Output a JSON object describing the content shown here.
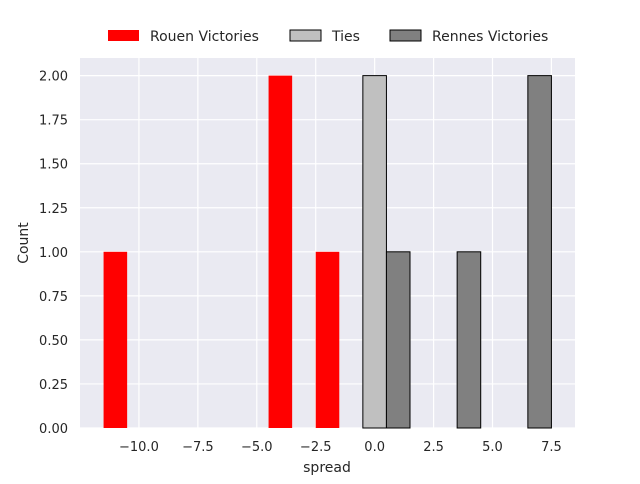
{
  "chart_data": {
    "type": "bar",
    "xlabel": "spread",
    "ylabel": "Count",
    "xlim": [
      -12.5,
      8.5
    ],
    "ylim": [
      0,
      2.1
    ],
    "grid": true,
    "legend_position": "top-center",
    "x_ticks": [
      {
        "value": -10.0,
        "label": "−10.0"
      },
      {
        "value": -7.5,
        "label": "−7.5"
      },
      {
        "value": -5.0,
        "label": "−5.0"
      },
      {
        "value": -2.5,
        "label": "−2.5"
      },
      {
        "value": 0.0,
        "label": "0.0"
      },
      {
        "value": 2.5,
        "label": "2.5"
      },
      {
        "value": 5.0,
        "label": "5.0"
      },
      {
        "value": 7.5,
        "label": "7.5"
      }
    ],
    "y_ticks": [
      {
        "value": 0.0,
        "label": "0.00"
      },
      {
        "value": 0.25,
        "label": "0.25"
      },
      {
        "value": 0.5,
        "label": "0.50"
      },
      {
        "value": 0.75,
        "label": "0.75"
      },
      {
        "value": 1.0,
        "label": "1.00"
      },
      {
        "value": 1.25,
        "label": "1.25"
      },
      {
        "value": 1.5,
        "label": "1.50"
      },
      {
        "value": 1.75,
        "label": "1.75"
      },
      {
        "value": 2.0,
        "label": "2.00"
      }
    ],
    "series": [
      {
        "name": "Rouen Victories",
        "color": "#ff0000",
        "edge": "none",
        "bars": [
          {
            "x0": -11.5,
            "x1": -10.5,
            "count": 1
          },
          {
            "x0": -4.5,
            "x1": -3.5,
            "count": 2
          },
          {
            "x0": -2.5,
            "x1": -1.5,
            "count": 1
          }
        ]
      },
      {
        "name": "Ties",
        "color": "#c0c0c0",
        "edge": "#000000",
        "bars": [
          {
            "x0": -0.5,
            "x1": 0.5,
            "count": 2
          }
        ]
      },
      {
        "name": "Rennes Victories",
        "color": "#808080",
        "edge": "#000000",
        "bars": [
          {
            "x0": 0.5,
            "x1": 1.5,
            "count": 1
          },
          {
            "x0": 3.5,
            "x1": 4.5,
            "count": 1
          },
          {
            "x0": 6.5,
            "x1": 7.5,
            "count": 2
          }
        ]
      }
    ]
  }
}
